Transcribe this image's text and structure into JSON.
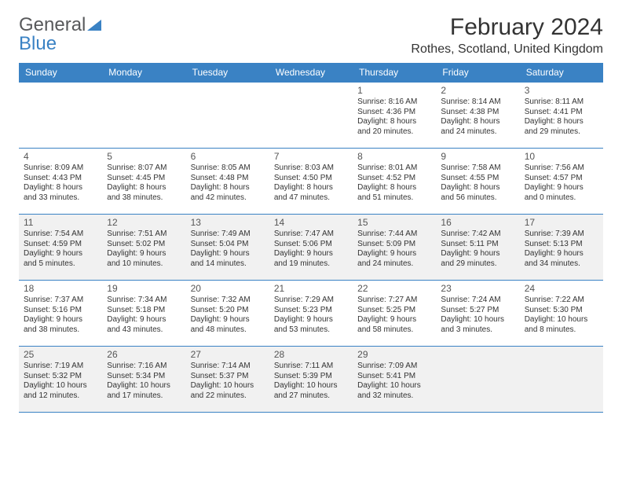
{
  "logo": {
    "text1": "General",
    "text2": "Blue"
  },
  "title": "February 2024",
  "location": "Rothes, Scotland, United Kingdom",
  "colors": {
    "header_bg": "#3a82c4",
    "header_text": "#ffffff",
    "border": "#3a82c4",
    "shade": "#f1f1f1",
    "text": "#333333",
    "logo_gray": "#58595b",
    "logo_blue": "#3a82c4"
  },
  "day_names": [
    "Sunday",
    "Monday",
    "Tuesday",
    "Wednesday",
    "Thursday",
    "Friday",
    "Saturday"
  ],
  "grid": {
    "cols": 7,
    "rows": 5,
    "first_day_col": 4,
    "shaded_rows": [
      2,
      4
    ]
  },
  "font": {
    "day_header_size": 12,
    "daynum_size": 12,
    "cell_size": 10,
    "title_size": 30,
    "location_size": 16
  },
  "days": [
    {
      "n": 1,
      "sunrise": "8:16 AM",
      "sunset": "4:36 PM",
      "daylight": "8 hours and 20 minutes."
    },
    {
      "n": 2,
      "sunrise": "8:14 AM",
      "sunset": "4:38 PM",
      "daylight": "8 hours and 24 minutes."
    },
    {
      "n": 3,
      "sunrise": "8:11 AM",
      "sunset": "4:41 PM",
      "daylight": "8 hours and 29 minutes."
    },
    {
      "n": 4,
      "sunrise": "8:09 AM",
      "sunset": "4:43 PM",
      "daylight": "8 hours and 33 minutes."
    },
    {
      "n": 5,
      "sunrise": "8:07 AM",
      "sunset": "4:45 PM",
      "daylight": "8 hours and 38 minutes."
    },
    {
      "n": 6,
      "sunrise": "8:05 AM",
      "sunset": "4:48 PM",
      "daylight": "8 hours and 42 minutes."
    },
    {
      "n": 7,
      "sunrise": "8:03 AM",
      "sunset": "4:50 PM",
      "daylight": "8 hours and 47 minutes."
    },
    {
      "n": 8,
      "sunrise": "8:01 AM",
      "sunset": "4:52 PM",
      "daylight": "8 hours and 51 minutes."
    },
    {
      "n": 9,
      "sunrise": "7:58 AM",
      "sunset": "4:55 PM",
      "daylight": "8 hours and 56 minutes."
    },
    {
      "n": 10,
      "sunrise": "7:56 AM",
      "sunset": "4:57 PM",
      "daylight": "9 hours and 0 minutes."
    },
    {
      "n": 11,
      "sunrise": "7:54 AM",
      "sunset": "4:59 PM",
      "daylight": "9 hours and 5 minutes."
    },
    {
      "n": 12,
      "sunrise": "7:51 AM",
      "sunset": "5:02 PM",
      "daylight": "9 hours and 10 minutes."
    },
    {
      "n": 13,
      "sunrise": "7:49 AM",
      "sunset": "5:04 PM",
      "daylight": "9 hours and 14 minutes."
    },
    {
      "n": 14,
      "sunrise": "7:47 AM",
      "sunset": "5:06 PM",
      "daylight": "9 hours and 19 minutes."
    },
    {
      "n": 15,
      "sunrise": "7:44 AM",
      "sunset": "5:09 PM",
      "daylight": "9 hours and 24 minutes."
    },
    {
      "n": 16,
      "sunrise": "7:42 AM",
      "sunset": "5:11 PM",
      "daylight": "9 hours and 29 minutes."
    },
    {
      "n": 17,
      "sunrise": "7:39 AM",
      "sunset": "5:13 PM",
      "daylight": "9 hours and 34 minutes."
    },
    {
      "n": 18,
      "sunrise": "7:37 AM",
      "sunset": "5:16 PM",
      "daylight": "9 hours and 38 minutes."
    },
    {
      "n": 19,
      "sunrise": "7:34 AM",
      "sunset": "5:18 PM",
      "daylight": "9 hours and 43 minutes."
    },
    {
      "n": 20,
      "sunrise": "7:32 AM",
      "sunset": "5:20 PM",
      "daylight": "9 hours and 48 minutes."
    },
    {
      "n": 21,
      "sunrise": "7:29 AM",
      "sunset": "5:23 PM",
      "daylight": "9 hours and 53 minutes."
    },
    {
      "n": 22,
      "sunrise": "7:27 AM",
      "sunset": "5:25 PM",
      "daylight": "9 hours and 58 minutes."
    },
    {
      "n": 23,
      "sunrise": "7:24 AM",
      "sunset": "5:27 PM",
      "daylight": "10 hours and 3 minutes."
    },
    {
      "n": 24,
      "sunrise": "7:22 AM",
      "sunset": "5:30 PM",
      "daylight": "10 hours and 8 minutes."
    },
    {
      "n": 25,
      "sunrise": "7:19 AM",
      "sunset": "5:32 PM",
      "daylight": "10 hours and 12 minutes."
    },
    {
      "n": 26,
      "sunrise": "7:16 AM",
      "sunset": "5:34 PM",
      "daylight": "10 hours and 17 minutes."
    },
    {
      "n": 27,
      "sunrise": "7:14 AM",
      "sunset": "5:37 PM",
      "daylight": "10 hours and 22 minutes."
    },
    {
      "n": 28,
      "sunrise": "7:11 AM",
      "sunset": "5:39 PM",
      "daylight": "10 hours and 27 minutes."
    },
    {
      "n": 29,
      "sunrise": "7:09 AM",
      "sunset": "5:41 PM",
      "daylight": "10 hours and 32 minutes."
    }
  ],
  "labels": {
    "sunrise": "Sunrise:",
    "sunset": "Sunset:",
    "daylight": "Daylight:"
  }
}
